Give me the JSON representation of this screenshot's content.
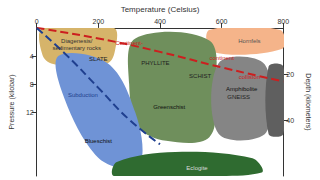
{
  "chart_data": {
    "type": "facies",
    "x_label": "Temperature (Celsius)",
    "y_label": "Pressure (kilobar)",
    "y2_label": "Depth (kilometers)",
    "xlim": [
      0,
      800
    ],
    "xticks": [
      0,
      200,
      400,
      600,
      800
    ],
    "ylim": [
      0,
      21
    ],
    "yticks": [
      4,
      8,
      12
    ],
    "y2lim": [
      0,
      64
    ],
    "y2ticks": [
      20,
      40
    ],
    "grid": false,
    "regions": [
      {
        "color": "#d6b46a",
        "points": [
          [
            20,
            0
          ],
          [
            250,
            0
          ],
          [
            255,
            3
          ],
          [
            230,
            5
          ],
          [
            60,
            5.2
          ],
          [
            20,
            4
          ]
        ]
      },
      {
        "color": "#f5b48a",
        "points": [
          [
            560,
            0.3
          ],
          [
            790,
            0.3
          ],
          [
            795,
            3
          ],
          [
            570,
            3.4
          ]
        ]
      },
      {
        "color": "#6f8f5c",
        "points": [
          [
            320,
            1.5
          ],
          [
            560,
            1.8
          ],
          [
            580,
            9
          ],
          [
            560,
            15.5
          ],
          [
            420,
            16
          ],
          [
            330,
            14
          ],
          [
            300,
            8
          ]
        ]
      },
      {
        "color": "#858585",
        "points": [
          [
            590,
            5
          ],
          [
            740,
            5.2
          ],
          [
            745,
            14.8
          ],
          [
            590,
            15
          ]
        ]
      },
      {
        "color": "#5f5f5f",
        "points": [
          [
            752,
            5.5
          ],
          [
            800,
            5.5
          ],
          [
            800,
            15
          ],
          [
            752,
            15
          ]
        ]
      },
      {
        "color": "#6f93d6",
        "points": [
          [
            70,
            4
          ],
          [
            230,
            5
          ],
          [
            320,
            12
          ],
          [
            340,
            19
          ],
          [
            280,
            20
          ],
          [
            190,
            18
          ],
          [
            90,
            10
          ]
        ]
      },
      {
        "color": "#2f6b30",
        "points": [
          [
            260,
            19
          ],
          [
            450,
            17.6
          ],
          [
            700,
            18.5
          ],
          [
            730,
            20.5
          ],
          [
            500,
            21
          ],
          [
            250,
            21
          ]
        ]
      }
    ],
    "series": [
      {
        "color": "#cc1f1f",
        "line_style": "dashed",
        "x": [
          0,
          200,
          400,
          600,
          800
        ],
        "y": [
          0,
          1.5,
          3.4,
          5.6,
          7.6
        ]
      },
      {
        "color": "#1f3f8f",
        "line_style": "dashed",
        "x": [
          0,
          100,
          200,
          300,
          400
        ],
        "y": [
          0,
          4,
          8.5,
          13,
          16.5
        ]
      }
    ],
    "annotations": [
      {
        "text": "Diagenesis/",
        "x": 130,
        "y": 1.8,
        "color": "#333333"
      },
      {
        "text": "sedimentary rocks",
        "x": 130,
        "y": 2.9,
        "color": "#333333"
      },
      {
        "text": "Hornfels",
        "x": 690,
        "y": 1.8,
        "color": "#555555"
      },
      {
        "text": "SLATE",
        "x": 200,
        "y": 4.4,
        "color": "#222222"
      },
      {
        "text": "PHYLLITE",
        "x": 385,
        "y": 5.0,
        "color": "#222222"
      },
      {
        "text": "SCHIST",
        "x": 530,
        "y": 6.8,
        "color": "#222222"
      },
      {
        "text": "GNEISS",
        "x": 655,
        "y": 9.8,
        "color": "#222222"
      },
      {
        "text": "Greenschist",
        "x": 430,
        "y": 11.2,
        "color": "#111111"
      },
      {
        "text": "Amphibolite",
        "x": 665,
        "y": 8.6,
        "color": "#111111"
      },
      {
        "text": "Blueschist",
        "x": 200,
        "y": 16.0,
        "color": "#111111"
      },
      {
        "text": "Eclogite",
        "x": 520,
        "y": 19.9,
        "color": "#dddddd"
      },
      {
        "text": "Continent-",
        "x": 300,
        "y": 2.1,
        "color": "#cc1f1f"
      },
      {
        "text": "continent",
        "x": 600,
        "y": 4.3,
        "color": "#cc1f1f"
      },
      {
        "text": "collision",
        "x": 690,
        "y": 7.0,
        "color": "#cc1f1f"
      },
      {
        "text": "Subduction",
        "x": 150,
        "y": 9.5,
        "color": "#1f3f8f"
      }
    ]
  }
}
